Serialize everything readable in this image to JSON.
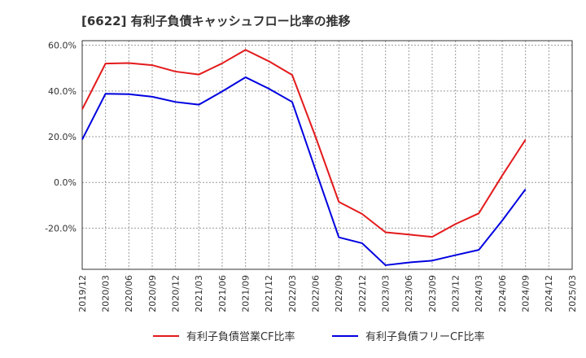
{
  "chart_data": {
    "type": "line",
    "title": "[6622]  有利子負債キャッシュフロー比率の推移",
    "x": [
      "2019/12",
      "2020/03",
      "2020/06",
      "2020/09",
      "2020/12",
      "2021/03",
      "2021/06",
      "2021/09",
      "2021/12",
      "2022/03",
      "2022/06",
      "2022/09",
      "2022/12",
      "2023/03",
      "2023/06",
      "2023/09",
      "2023/12",
      "2024/03",
      "2024/06",
      "2024/09",
      "2024/12",
      "2025/03"
    ],
    "y_ticks": [
      "60.0%",
      "40.0%",
      "20.0%",
      "0.0%",
      "-20.0%"
    ],
    "y_tick_values": [
      60,
      40,
      20,
      0,
      -20
    ],
    "ylim": [
      -38,
      62
    ],
    "grid": true,
    "legend_position": "bottom",
    "series": [
      {
        "name": "有利子負債営業CF比率",
        "color": "#e31a1c",
        "values": [
          32.0,
          52.0,
          52.2,
          51.3,
          48.5,
          47.2,
          52.1,
          58.0,
          53.0,
          47.0,
          20.0,
          -8.5,
          -13.8,
          -21.8,
          -22.8,
          -23.8,
          -18.2,
          -13.5,
          3.0,
          18.7,
          null,
          null
        ]
      },
      {
        "name": "有利子負債フリーCF比率",
        "color": "#0000e0",
        "values": [
          18.8,
          38.8,
          38.6,
          37.5,
          35.2,
          34.0,
          39.8,
          46.0,
          41.0,
          35.2,
          5.5,
          -24.0,
          -26.6,
          -36.2,
          -35.0,
          -34.2,
          -31.8,
          -29.5,
          -16.7,
          -3.0,
          null,
          null
        ]
      }
    ]
  }
}
